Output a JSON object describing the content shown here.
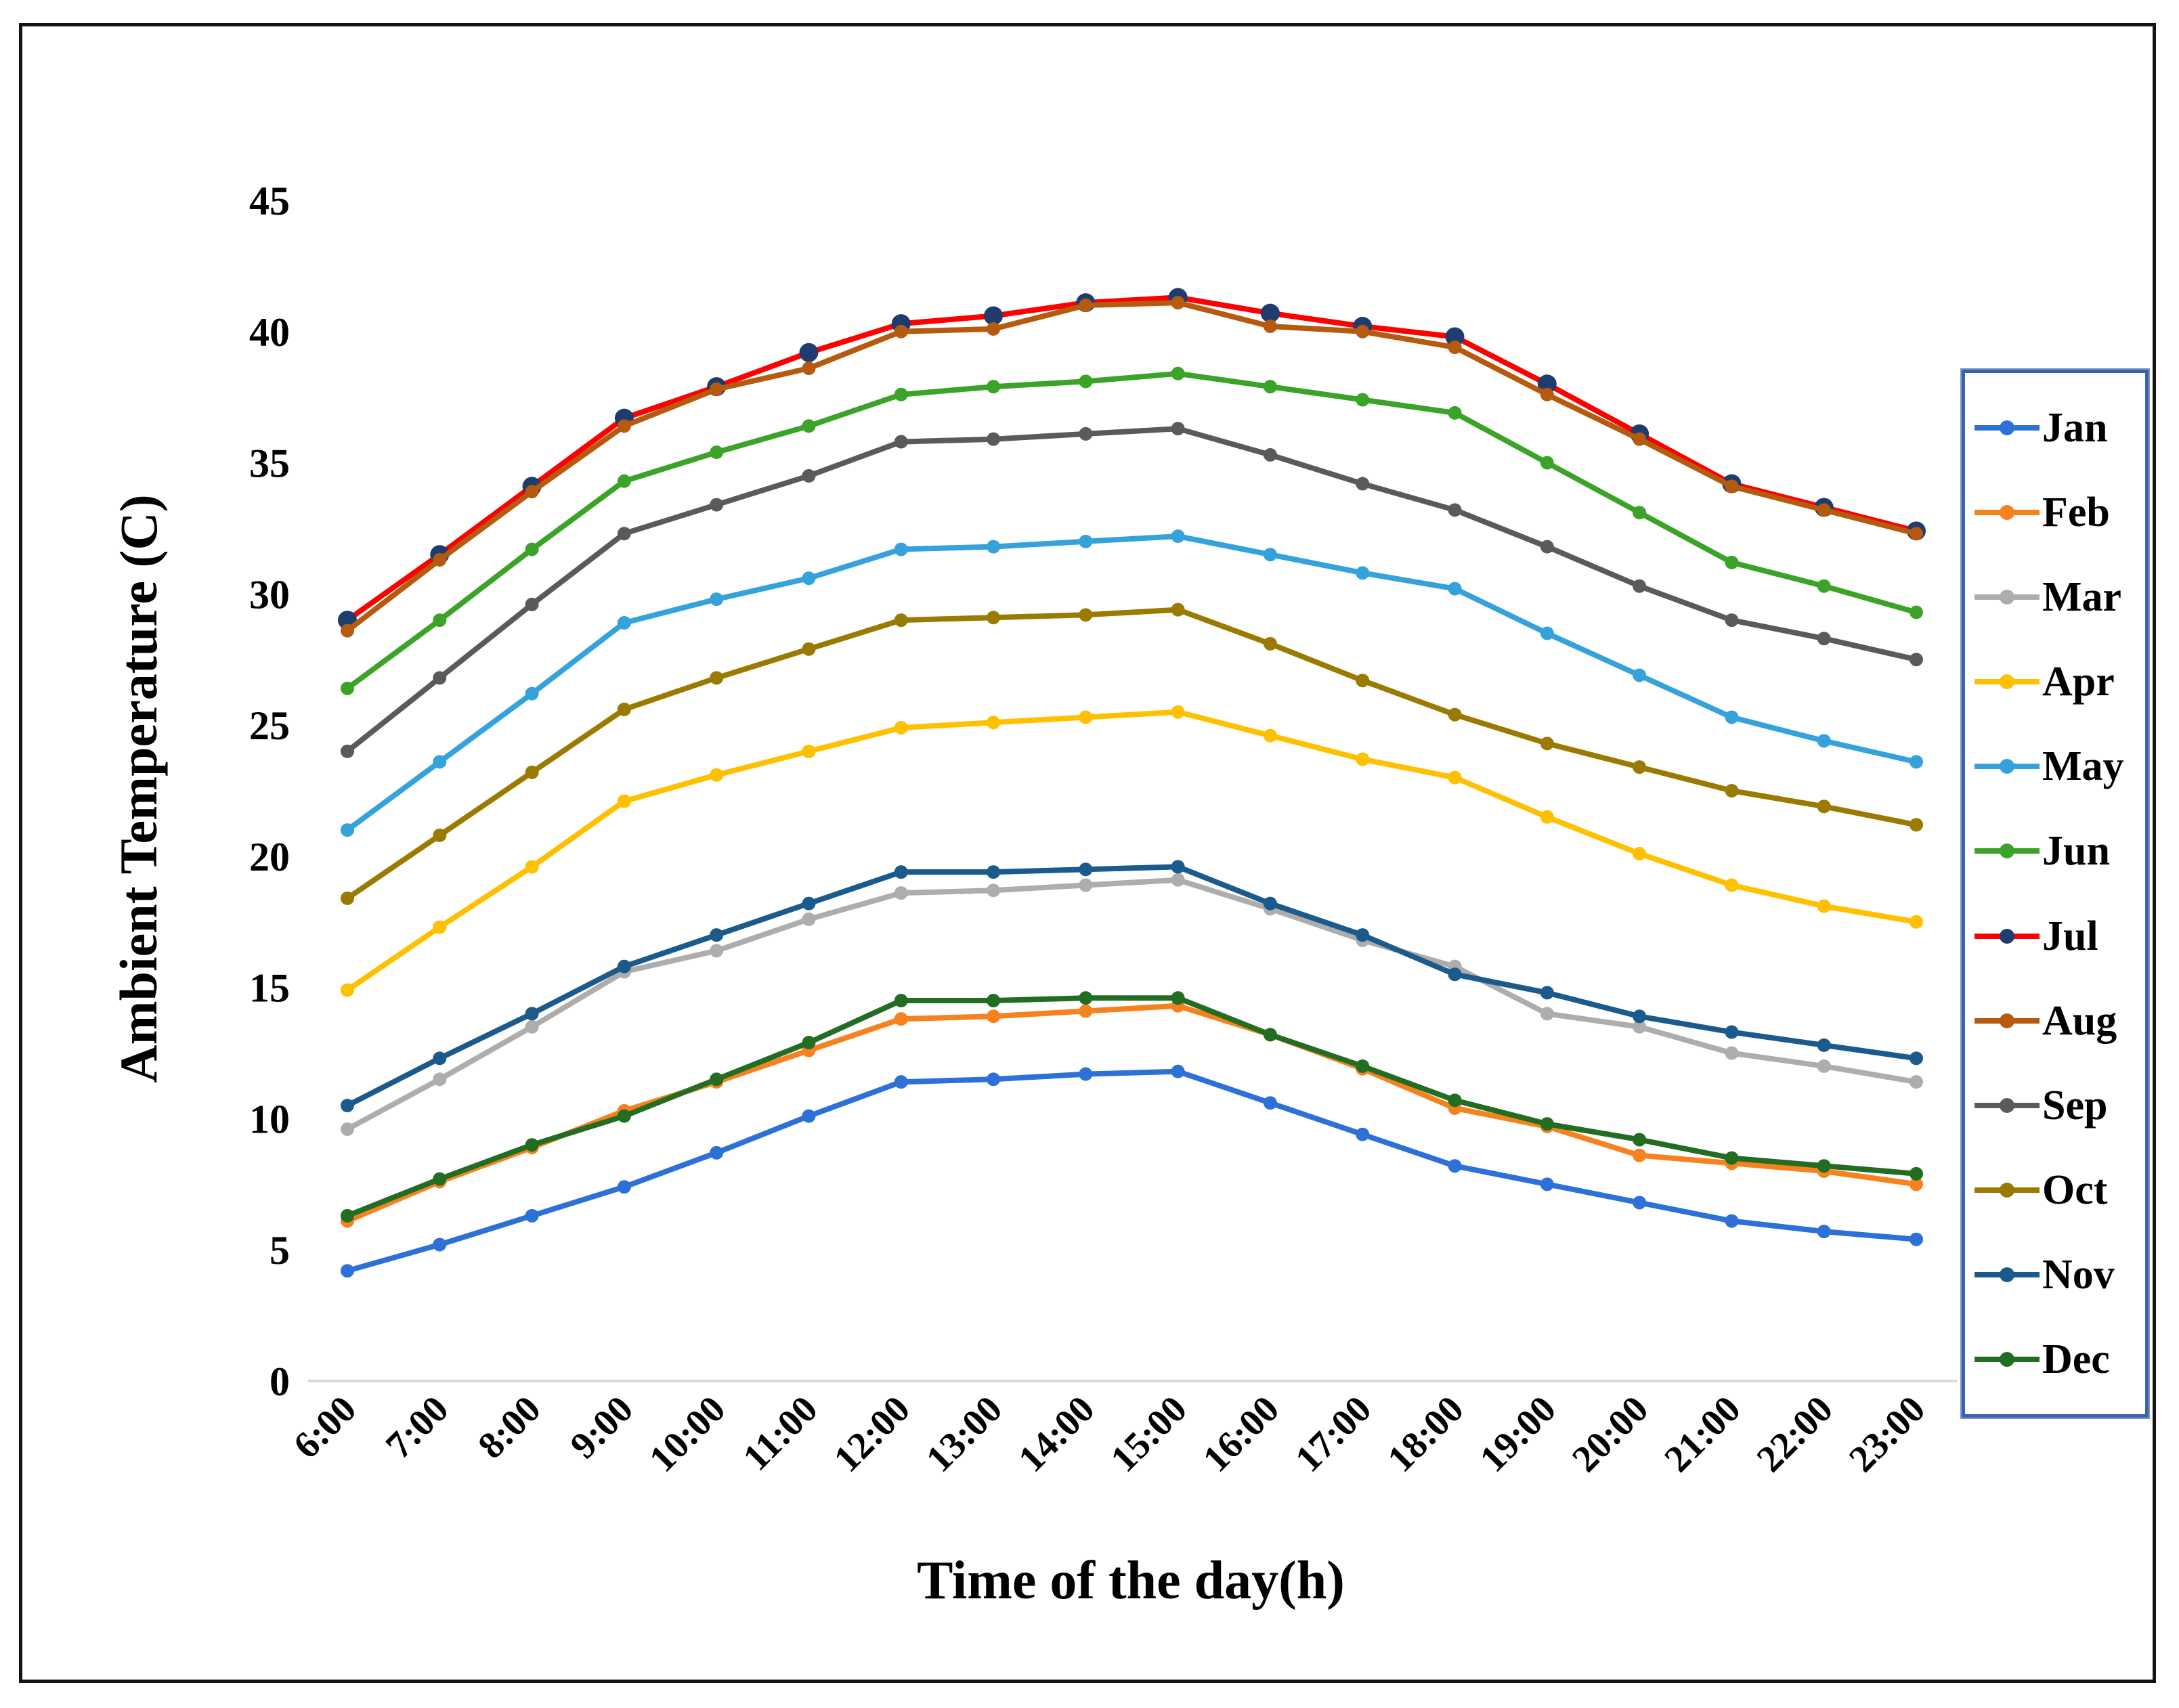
{
  "chart_data": {
    "type": "line",
    "title": "",
    "xlabel": "Time of the day(h)",
    "ylabel": "Ambient Temperature (C)",
    "x": [
      "6:00",
      "7:00",
      "8:00",
      "9:00",
      "10:00",
      "11:00",
      "12:00",
      "13:00",
      "14:00",
      "15:00",
      "16:00",
      "17:00",
      "18:00",
      "19:00",
      "20:00",
      "21:00",
      "22:00",
      "23:00"
    ],
    "ylim": [
      0,
      45
    ],
    "yticks": [
      0,
      5,
      10,
      15,
      20,
      25,
      30,
      35,
      40,
      45
    ],
    "grid": false,
    "legend_position": "right",
    "legend_border_color": "#3E62A8",
    "axis_line_color": "#d9d9d9",
    "series": [
      {
        "name": "Jan",
        "color": "#2C70D8",
        "values": [
          4.2,
          5.2,
          6.3,
          7.4,
          8.7,
          10.1,
          11.4,
          11.5,
          11.7,
          11.8,
          10.6,
          9.4,
          8.2,
          7.5,
          6.8,
          6.1,
          5.7,
          5.4
        ]
      },
      {
        "name": "Feb",
        "color": "#F5821E",
        "values": [
          6.1,
          7.6,
          8.9,
          10.3,
          11.4,
          12.6,
          13.8,
          13.9,
          14.1,
          14.3,
          13.2,
          11.9,
          10.4,
          9.7,
          8.6,
          8.3,
          8.0,
          7.5
        ]
      },
      {
        "name": "Mar",
        "color": "#ADADAD",
        "values": [
          9.6,
          11.5,
          13.5,
          15.6,
          16.4,
          17.6,
          18.6,
          18.7,
          18.9,
          19.1,
          18.0,
          16.8,
          15.8,
          14.0,
          13.5,
          12.5,
          12.0,
          11.4
        ]
      },
      {
        "name": "Apr",
        "color": "#FFC000",
        "values": [
          14.9,
          17.3,
          19.6,
          22.1,
          23.1,
          24.0,
          24.9,
          25.1,
          25.3,
          25.5,
          24.6,
          23.7,
          23.0,
          21.5,
          20.1,
          18.9,
          18.1,
          17.5
        ]
      },
      {
        "name": "May",
        "color": "#35A2DB",
        "values": [
          21.0,
          23.6,
          26.2,
          28.9,
          29.8,
          30.6,
          31.7,
          31.8,
          32.0,
          32.2,
          31.5,
          30.8,
          30.2,
          28.5,
          26.9,
          25.3,
          24.4,
          23.6
        ]
      },
      {
        "name": "Jun",
        "color": "#3BA428",
        "values": [
          26.4,
          29.0,
          31.7,
          34.3,
          35.4,
          36.4,
          37.6,
          37.9,
          38.1,
          38.4,
          37.9,
          37.4,
          36.9,
          35.0,
          33.1,
          31.2,
          30.3,
          29.3
        ]
      },
      {
        "name": "Jul",
        "color": "#FE0000",
        "marker_color": "#1E3C6E",
        "values": [
          29.0,
          31.5,
          34.1,
          36.7,
          37.9,
          39.2,
          40.3,
          40.6,
          41.1,
          41.3,
          40.7,
          40.2,
          39.8,
          38.0,
          36.1,
          34.2,
          33.3,
          32.4
        ]
      },
      {
        "name": "Aug",
        "color": "#B55A0F",
        "values": [
          28.6,
          31.3,
          33.9,
          36.4,
          37.8,
          38.6,
          40.0,
          40.1,
          41.0,
          41.1,
          40.2,
          40.0,
          39.4,
          37.6,
          35.9,
          34.1,
          33.2,
          32.3
        ]
      },
      {
        "name": "Sep",
        "color": "#5A5A5A",
        "values": [
          24.0,
          26.8,
          29.6,
          32.3,
          33.4,
          34.5,
          35.8,
          35.9,
          36.1,
          36.3,
          35.3,
          34.2,
          33.2,
          31.8,
          30.3,
          29.0,
          28.3,
          27.5
        ]
      },
      {
        "name": "Oct",
        "color": "#9B7A01",
        "values": [
          18.4,
          20.8,
          23.2,
          25.6,
          26.8,
          27.9,
          29.0,
          29.1,
          29.2,
          29.4,
          28.1,
          26.7,
          25.4,
          24.3,
          23.4,
          22.5,
          21.9,
          21.2
        ]
      },
      {
        "name": "Nov",
        "color": "#1A5A8C",
        "values": [
          10.5,
          12.3,
          14.0,
          15.8,
          17.0,
          18.2,
          19.4,
          19.4,
          19.5,
          19.6,
          18.2,
          17.0,
          15.5,
          14.8,
          13.9,
          13.3,
          12.8,
          12.3
        ]
      },
      {
        "name": "Dec",
        "color": "#226D22",
        "values": [
          6.3,
          7.7,
          9.0,
          10.1,
          11.5,
          12.9,
          14.5,
          14.5,
          14.6,
          14.6,
          13.2,
          12.0,
          10.7,
          9.8,
          9.2,
          8.5,
          8.2,
          7.9
        ]
      }
    ]
  }
}
